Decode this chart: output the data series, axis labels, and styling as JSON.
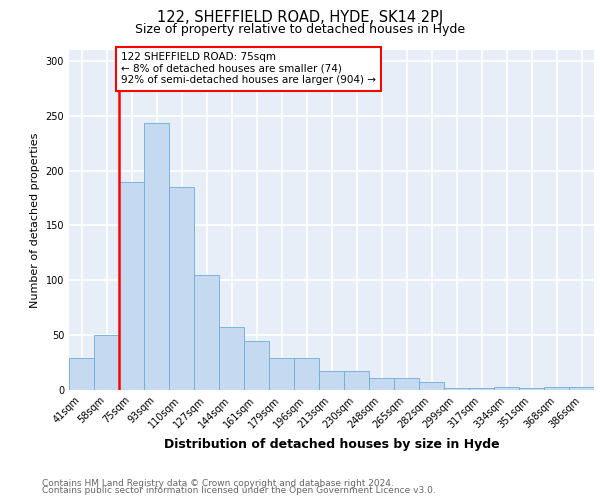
{
  "title1": "122, SHEFFIELD ROAD, HYDE, SK14 2PJ",
  "title2": "Size of property relative to detached houses in Hyde",
  "xlabel": "Distribution of detached houses by size in Hyde",
  "ylabel": "Number of detached properties",
  "footnote1": "Contains HM Land Registry data © Crown copyright and database right 2024.",
  "footnote2": "Contains public sector information licensed under the Open Government Licence v3.0.",
  "categories": [
    "41sqm",
    "58sqm",
    "75sqm",
    "93sqm",
    "110sqm",
    "127sqm",
    "144sqm",
    "161sqm",
    "179sqm",
    "196sqm",
    "213sqm",
    "230sqm",
    "248sqm",
    "265sqm",
    "282sqm",
    "299sqm",
    "317sqm",
    "334sqm",
    "351sqm",
    "368sqm",
    "386sqm"
  ],
  "values": [
    29,
    50,
    190,
    243,
    185,
    105,
    57,
    45,
    29,
    29,
    17,
    17,
    11,
    11,
    7,
    2,
    2,
    3,
    2,
    3,
    3
  ],
  "bar_color": "#c5d9f0",
  "bar_edge_color": "#6baed6",
  "red_line_x": 2,
  "annotation_text": "122 SHEFFIELD ROAD: 75sqm\n← 8% of detached houses are smaller (74)\n92% of semi-detached houses are larger (904) →",
  "annotation_box_color": "white",
  "annotation_box_edge": "red",
  "ylim": [
    0,
    310
  ],
  "background_color": "#e8eef8",
  "grid_color": "white",
  "title1_fontsize": 10.5,
  "title2_fontsize": 9,
  "xlabel_fontsize": 9,
  "ylabel_fontsize": 8,
  "tick_fontsize": 7,
  "annot_fontsize": 7.5,
  "footnote_fontsize": 6.5
}
